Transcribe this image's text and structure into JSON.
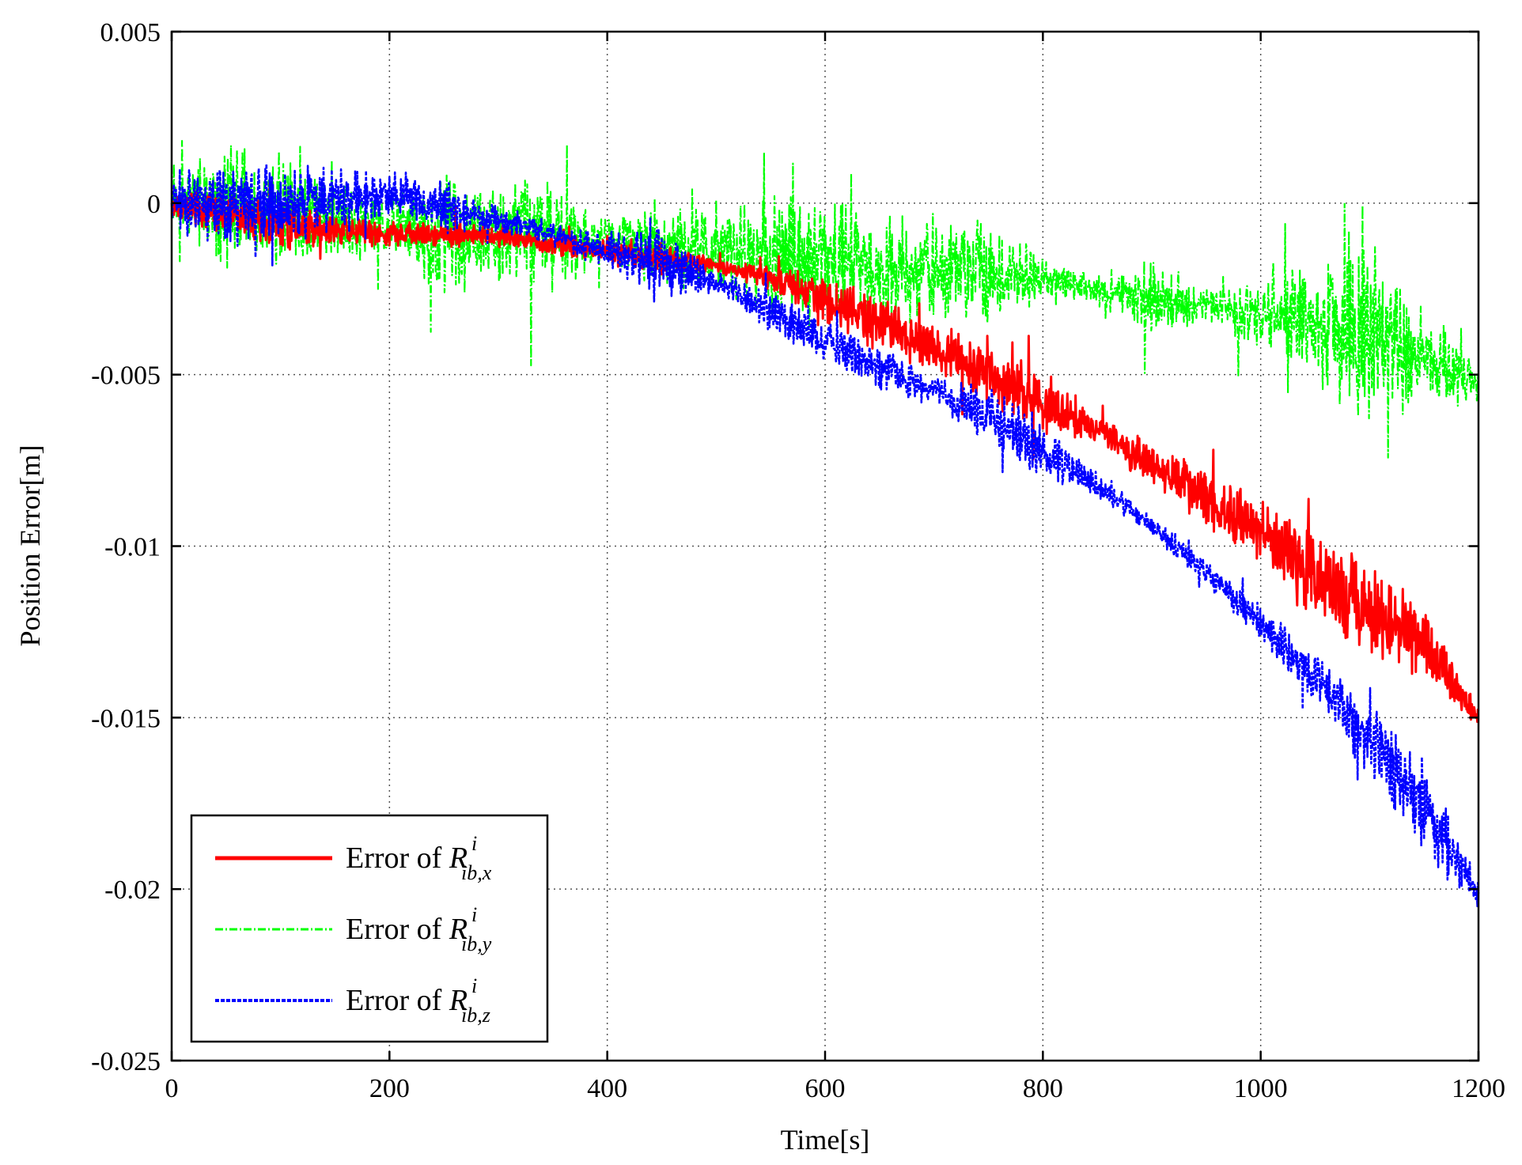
{
  "chart_data": {
    "type": "line",
    "title": "",
    "xlabel": "Time[s]",
    "ylabel": "Position Error[m]",
    "xlim": [
      0,
      1200
    ],
    "ylim": [
      -0.025,
      0.005
    ],
    "xticks": [
      0,
      200,
      400,
      600,
      800,
      1000,
      1200
    ],
    "xtick_labels": [
      "0",
      "200",
      "400",
      "600",
      "800",
      "1000",
      "1200"
    ],
    "yticks": [
      0.005,
      0,
      -0.005,
      -0.01,
      -0.015,
      -0.02,
      -0.025
    ],
    "ytick_labels": [
      "0.005",
      "0",
      "-0.005",
      "-0.01",
      "-0.015",
      "-0.02",
      "-0.025"
    ],
    "grid": true,
    "legend_position": "bottom-left",
    "series": [
      {
        "name": "Error of R^i_{ib,x}",
        "legend_prefix": "Error of ",
        "legend_symbol": "R",
        "legend_sup": "i",
        "legend_sub": "ib,x",
        "color": "#ff0000",
        "style": "solid",
        "x": [
          0,
          50,
          100,
          150,
          200,
          250,
          300,
          350,
          400,
          450,
          500,
          550,
          600,
          650,
          700,
          750,
          800,
          850,
          900,
          950,
          1000,
          1050,
          1100,
          1150,
          1200
        ],
        "y": [
          0,
          -0.0003,
          -0.0006,
          -0.0008,
          -0.0009,
          -0.0009,
          -0.001,
          -0.0012,
          -0.0014,
          -0.0016,
          -0.0018,
          -0.0022,
          -0.0028,
          -0.0035,
          -0.0042,
          -0.005,
          -0.0058,
          -0.0066,
          -0.0076,
          -0.0086,
          -0.0096,
          -0.0108,
          -0.012,
          -0.0128,
          -0.015
        ],
        "amplitude": [
          0.0006,
          0.0008,
          0.0009,
          0.0007,
          0.0005,
          0.0005,
          0.0004,
          0.0004,
          0.0005,
          0.0006,
          0.0003,
          0.0005,
          0.0009,
          0.0011,
          0.0009,
          0.0012,
          0.0012,
          0.0005,
          0.0009,
          0.0012,
          0.0012,
          0.0018,
          0.0016,
          0.0014,
          0.0004
        ]
      },
      {
        "name": "Error of R^i_{ib,y}",
        "legend_prefix": "Error of ",
        "legend_symbol": "R",
        "legend_sup": "i",
        "legend_sub": "ib,y",
        "color": "#00ff00",
        "style": "dashdot",
        "x": [
          0,
          50,
          100,
          150,
          200,
          250,
          300,
          350,
          400,
          450,
          500,
          550,
          600,
          650,
          700,
          750,
          800,
          850,
          900,
          950,
          1000,
          1050,
          1100,
          1150,
          1200
        ],
        "y": [
          0,
          -0.0002,
          -0.0004,
          -0.0006,
          -0.0007,
          -0.0008,
          -0.0009,
          -0.001,
          -0.0011,
          -0.0012,
          -0.0013,
          -0.0015,
          -0.0017,
          -0.0019,
          -0.002,
          -0.0021,
          -0.0022,
          -0.0025,
          -0.0028,
          -0.003,
          -0.0033,
          -0.0036,
          -0.004,
          -0.0045,
          -0.0052
        ],
        "amplitude": [
          0.0012,
          0.0028,
          0.0022,
          0.0016,
          0.0012,
          0.0026,
          0.0022,
          0.0024,
          0.0008,
          0.002,
          0.0018,
          0.0024,
          0.0026,
          0.0022,
          0.0024,
          0.0024,
          0.0008,
          0.0006,
          0.0016,
          0.0006,
          0.0014,
          0.0024,
          0.0038,
          0.0022,
          0.0008
        ]
      },
      {
        "name": "Error of R^i_{ib,z}",
        "legend_prefix": "Error of ",
        "legend_symbol": "R",
        "legend_sup": "i",
        "legend_sub": "ib,z",
        "color": "#0000ff",
        "style": "dashed",
        "x": [
          0,
          50,
          100,
          150,
          200,
          250,
          300,
          350,
          400,
          450,
          500,
          550,
          600,
          650,
          700,
          750,
          800,
          850,
          900,
          950,
          1000,
          1050,
          1100,
          1150,
          1200
        ],
        "y": [
          0,
          0,
          0,
          0.0001,
          0.0002,
          -0.0001,
          -0.0005,
          -0.0009,
          -0.0014,
          -0.0018,
          -0.0023,
          -0.0032,
          -0.004,
          -0.0048,
          -0.0055,
          -0.0062,
          -0.0072,
          -0.0082,
          -0.0094,
          -0.0108,
          -0.0122,
          -0.0138,
          -0.0156,
          -0.0176,
          -0.0202
        ],
        "amplitude": [
          0.0014,
          0.0016,
          0.0015,
          0.0014,
          0.001,
          0.001,
          0.0005,
          0.0005,
          0.0007,
          0.0016,
          0.0005,
          0.0008,
          0.0009,
          0.0009,
          0.0006,
          0.0012,
          0.0011,
          0.0005,
          0.0004,
          0.0005,
          0.0007,
          0.001,
          0.0014,
          0.0018,
          0.0006
        ]
      }
    ]
  }
}
